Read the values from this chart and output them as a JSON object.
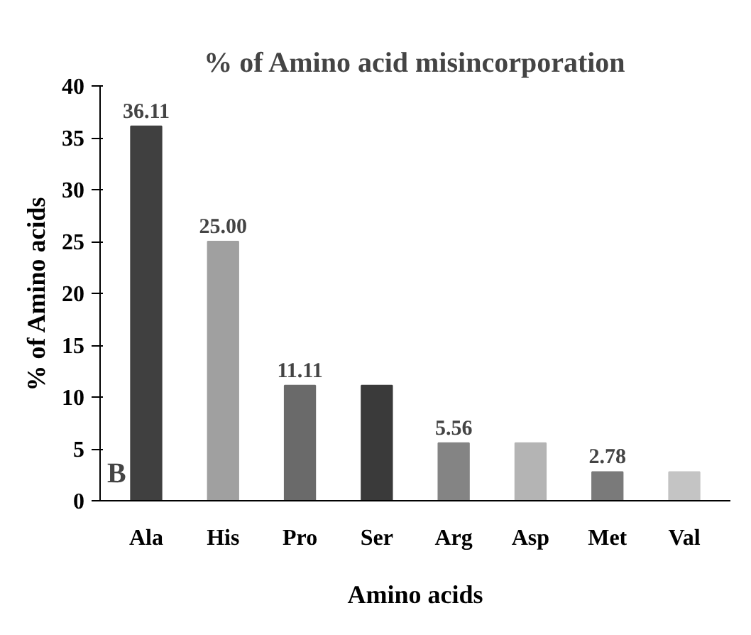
{
  "chart_data": {
    "type": "bar",
    "title": "% of Amino acid misincorporation",
    "xlabel": "Amino acids",
    "ylabel": "% of Amino acids",
    "categories": [
      "Ala",
      "His",
      "Pro",
      "Ser",
      "Arg",
      "Asp",
      "Met",
      "Val"
    ],
    "values": [
      36.11,
      25.0,
      11.11,
      11.11,
      5.56,
      5.56,
      2.78,
      2.78
    ],
    "value_labels": [
      "36.11",
      "25.00",
      "11.11",
      null,
      "5.56",
      null,
      "2.78",
      null
    ],
    "colors": [
      "#404040",
      "#a0a0a0",
      "#6a6a6a",
      "#3a3a3a",
      "#848484",
      "#b4b4b4",
      "#7a7a7a",
      "#c4c4c4"
    ],
    "ylim": [
      0,
      40
    ],
    "yticks": [
      0,
      5,
      10,
      15,
      20,
      25,
      30,
      35,
      40
    ],
    "grid": false,
    "annotations": [
      "B"
    ]
  }
}
